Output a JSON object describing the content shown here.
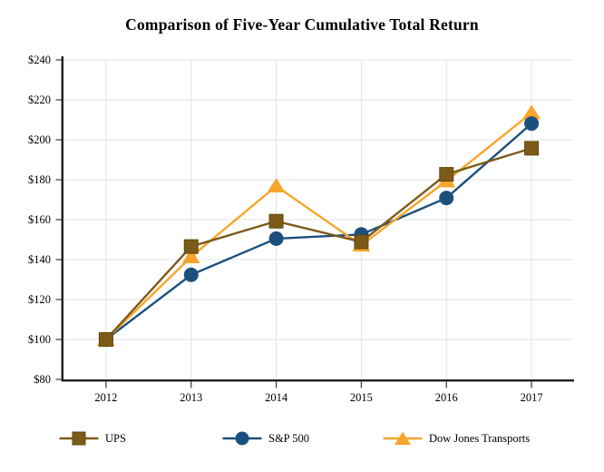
{
  "page": {
    "background_color": "#ffffff"
  },
  "chart_data": {
    "type": "line",
    "title": "Comparison of Five-Year Cumulative Total Return",
    "categories": [
      "2012",
      "2013",
      "2014",
      "2015",
      "2016",
      "2017"
    ],
    "x_tick_labels": [
      "2012",
      "2013",
      "2014",
      "2015",
      "2016",
      "2017"
    ],
    "y_tick_labels": [
      "$240",
      "$220",
      "$200",
      "$180",
      "$160",
      "$140",
      "$120",
      "$100",
      "$80"
    ],
    "y_tick_values": [
      240,
      220,
      200,
      180,
      160,
      140,
      120,
      100,
      80
    ],
    "ylim": [
      80,
      240
    ],
    "xlabel": "",
    "ylabel": "",
    "grid": true,
    "legend_position": "bottom",
    "series": [
      {
        "name": "UPS",
        "marker": "square",
        "color": "#7D5A17",
        "marker_stroke": "#63470F",
        "values": [
          100.0,
          146.54,
          159.23,
          148.89,
          182.7,
          195.75
        ]
      },
      {
        "name": "S&P 500",
        "marker": "circle",
        "color": "#1B507E",
        "marker_stroke": "#1B507E",
        "values": [
          100.0,
          132.39,
          150.51,
          152.59,
          170.84,
          208.14
        ]
      },
      {
        "name": "Dow Jones Transports",
        "marker": "triangle",
        "color": "#F7A62B",
        "marker_stroke": "#EF9C1E",
        "values": [
          100.0,
          141.38,
          176.83,
          147.19,
          179.37,
          213.49
        ]
      }
    ],
    "colors": {
      "grid": "#E3E3E3",
      "axis": "#1F1F1F",
      "tick": "#444444",
      "text": "#000000"
    }
  }
}
